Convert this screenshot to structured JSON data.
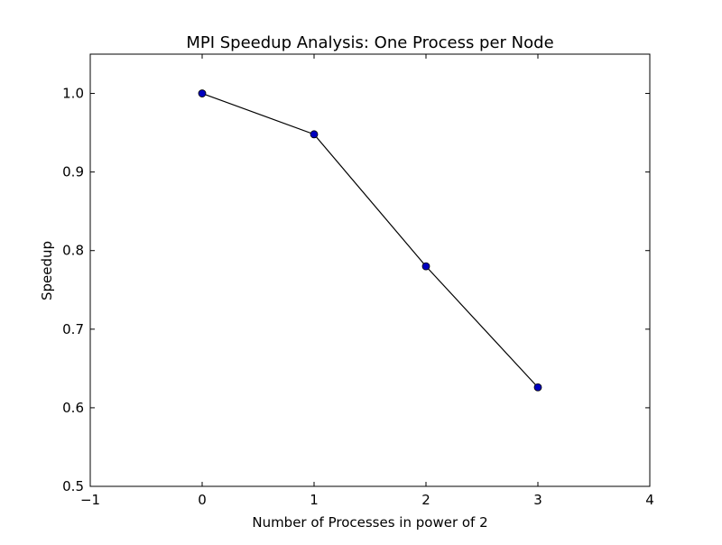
{
  "chart_data": {
    "type": "line",
    "title": "MPI Speedup Analysis: One Process per Node",
    "xlabel": "Number of Processes in power of 2",
    "ylabel": "Speedup",
    "xlim": [
      -1,
      4
    ],
    "ylim": [
      0.5,
      1.05
    ],
    "xticks": [
      -1,
      0,
      1,
      2,
      3,
      4
    ],
    "xtick_labels": [
      "−1",
      "0",
      "1",
      "2",
      "3",
      "4"
    ],
    "yticks": [
      0.5,
      0.6,
      0.7,
      0.8,
      0.9,
      1.0
    ],
    "ytick_labels": [
      "0.5",
      "0.6",
      "0.7",
      "0.8",
      "0.9",
      "1.0"
    ],
    "grid": false,
    "legend": "none",
    "series": [
      {
        "x": [
          0,
          1,
          2,
          3
        ],
        "y": [
          1.0,
          0.948,
          0.78,
          0.626
        ],
        "line_color": "#000000",
        "marker_color": "#0000bf"
      }
    ]
  }
}
